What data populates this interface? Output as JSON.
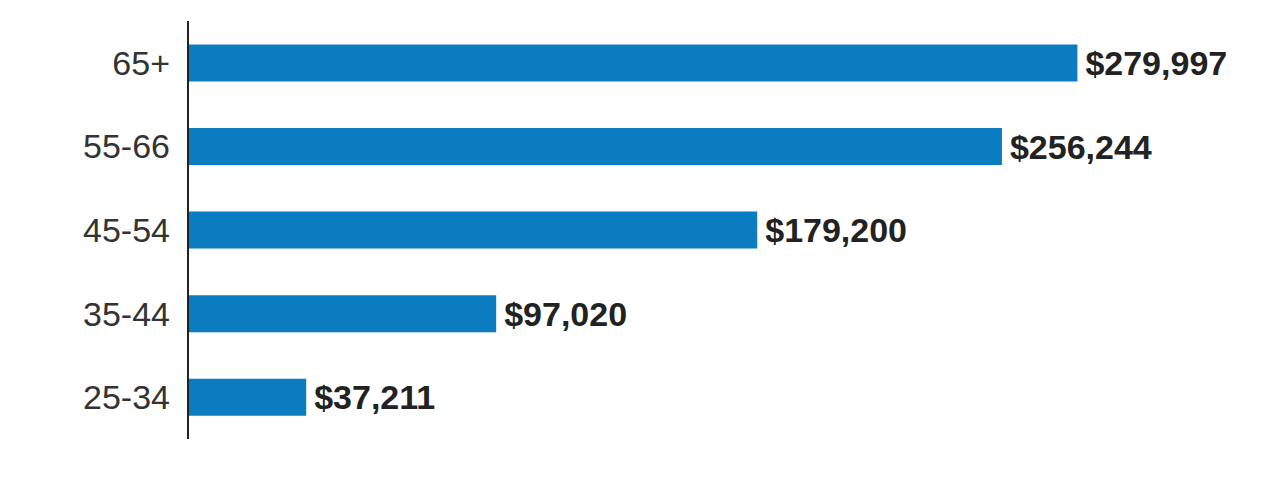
{
  "chart_data": {
    "type": "bar",
    "orientation": "horizontal",
    "categories": [
      "65+",
      "55-66",
      "45-54",
      "35-44",
      "25-34"
    ],
    "values": [
      279997,
      256244,
      179200,
      97020,
      37211
    ],
    "value_labels": [
      "$279,997",
      "$256,244",
      "$179,200",
      "$97,020",
      "$37,211"
    ],
    "data_labels": true,
    "color": "#0a7dc1",
    "xlim": [
      0,
      340000
    ],
    "tick_labels": false,
    "grid": false
  }
}
